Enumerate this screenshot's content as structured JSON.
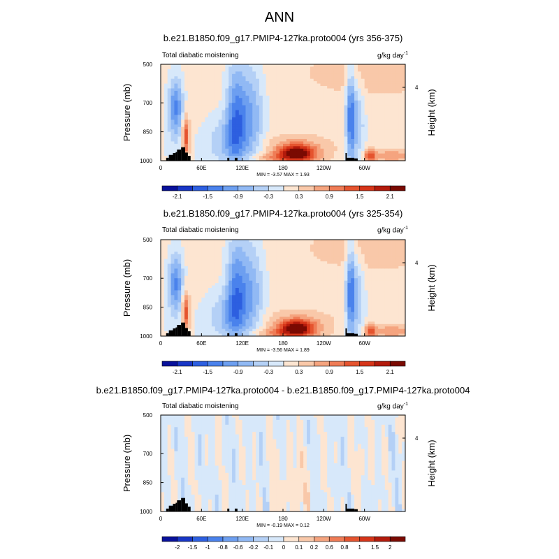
{
  "figure_title": "ANN",
  "chart_data": [
    {
      "type": "heatmap",
      "panel_title": "b.e21.B1850.f09_g17.PMIP4-127ka.proto004 (yrs 356-375)",
      "variable_label": "Total diabatic moistening",
      "units_label": "g/kg day",
      "units_superscript": "-1",
      "ylabel": "Pressure (mb)",
      "right_ylabel": "Height (km)",
      "right_ticks": [
        4
      ],
      "y_ticks": [
        500,
        700,
        850,
        1000
      ],
      "x_ticks": [
        "0",
        "60E",
        "120E",
        "180",
        "120W",
        "60W"
      ],
      "ylim": [
        1000,
        500
      ],
      "min_label": "MIN =  -3.57  MAX =   1.93",
      "colorbar_labels": [
        "-2.1",
        "-1.5",
        "-0.9",
        "-0.3",
        "0.3",
        "0.9",
        "1.5",
        "2.1"
      ],
      "colorbar_levels": [
        -2.4,
        -2.1,
        -1.8,
        -1.5,
        -1.2,
        -0.9,
        -0.6,
        -0.3,
        0,
        0.3,
        0.6,
        0.9,
        1.2,
        1.5,
        1.8,
        2.1,
        2.4
      ],
      "field_scale": 1.0
    },
    {
      "type": "heatmap",
      "panel_title": "b.e21.B1850.f09_g17.PMIP4-127ka.proto004 (yrs 325-354)",
      "variable_label": "Total diabatic moistening",
      "units_label": "g/kg day",
      "units_superscript": "-1",
      "ylabel": "Pressure (mb)",
      "right_ylabel": "Height (km)",
      "right_ticks": [
        4
      ],
      "y_ticks": [
        500,
        700,
        850,
        1000
      ],
      "x_ticks": [
        "0",
        "60E",
        "120E",
        "180",
        "120W",
        "60W"
      ],
      "ylim": [
        1000,
        500
      ],
      "min_label": "MIN =  -3.56  MAX =   1.89",
      "colorbar_labels": [
        "-2.1",
        "-1.5",
        "-0.9",
        "-0.3",
        "0.3",
        "0.9",
        "1.5",
        "2.1"
      ],
      "colorbar_levels": [
        -2.4,
        -2.1,
        -1.8,
        -1.5,
        -1.2,
        -0.9,
        -0.6,
        -0.3,
        0,
        0.3,
        0.6,
        0.9,
        1.2,
        1.5,
        1.8,
        2.1,
        2.4
      ],
      "field_scale": 0.98
    },
    {
      "type": "heatmap",
      "panel_title": "b.e21.B1850.f09_g17.PMIP4-127ka.proto004 - b.e21.B1850.f09_g17.PMIP4-127ka.proto004",
      "variable_label": "Total diabatic moistening",
      "units_label": "g/kg day",
      "units_superscript": "-1",
      "ylabel": "Pressure (mb)",
      "right_ylabel": "Height (km)",
      "right_ticks": [
        4
      ],
      "y_ticks": [
        500,
        700,
        850,
        1000
      ],
      "x_ticks": [
        "0",
        "60E",
        "120E",
        "180",
        "120W",
        "60W"
      ],
      "ylim": [
        1000,
        500
      ],
      "min_label": "MIN =  -0.19  MAX =   0.12",
      "colorbar_labels": [
        "-2",
        "-1.5",
        "-1",
        "-0.8",
        "-0.6",
        "-0.2",
        "-0.1",
        "0",
        "0.1",
        "0.2",
        "0.6",
        "0.8",
        "1",
        "1.5",
        "2"
      ],
      "colorbar_levels": [
        -3,
        -2,
        -1.5,
        -1,
        -0.8,
        -0.6,
        -0.2,
        -0.1,
        0,
        0.1,
        0.2,
        0.6,
        0.8,
        1,
        1.5,
        2,
        3
      ],
      "field_scale": "difference"
    }
  ],
  "colors": {
    "cbar": [
      "#08119b",
      "#1836c6",
      "#2d5fe0",
      "#4a82ec",
      "#6d9ff0",
      "#91b9f4",
      "#b4d0f6",
      "#d7e8fa",
      "#fde5d1",
      "#f9c8a9",
      "#f5a47f",
      "#ef7c56",
      "#e5542f",
      "#d63519",
      "#b31b0c",
      "#7a0a02"
    ],
    "topography": "#000000"
  }
}
